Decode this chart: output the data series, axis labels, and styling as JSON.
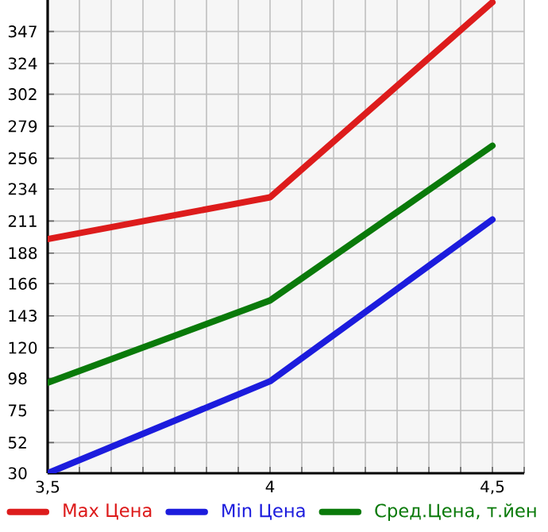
{
  "chart_data": {
    "type": "line",
    "x": [
      3.5,
      4,
      4.5
    ],
    "xlim": [
      3.5,
      4.5714
    ],
    "xticks": [
      {
        "value": 3.5,
        "label": "3,5"
      },
      {
        "value": 3.5714,
        "label": null
      },
      {
        "value": 3.6429,
        "label": null
      },
      {
        "value": 3.7143,
        "label": null
      },
      {
        "value": 3.7857,
        "label": null
      },
      {
        "value": 3.8571,
        "label": null
      },
      {
        "value": 3.9286,
        "label": null
      },
      4,
      {
        "value": 4.0714,
        "label": null
      },
      {
        "value": 4.1429,
        "label": null
      },
      {
        "value": 4.2143,
        "label": null
      },
      {
        "value": 4.2857,
        "label": null
      },
      {
        "value": 4.3571,
        "label": null
      },
      {
        "value": 4.4286,
        "label": null
      },
      {
        "value": 4.5,
        "label": "4,5"
      },
      {
        "value": 4.5714,
        "label": null
      }
    ],
    "ylim": [
      30,
      369.6
    ],
    "yticks": [
      30,
      52,
      75,
      98,
      120,
      143,
      166,
      188,
      211,
      234,
      256,
      279,
      302,
      324,
      347
    ],
    "series": [
      {
        "name": "Max Цена",
        "color": "#dd1c1c",
        "values": [
          198,
          228,
          368
        ]
      },
      {
        "name": "Min Цена",
        "color": "#1c1cdd",
        "values": [
          30,
          96,
          212
        ]
      },
      {
        "name": "Сред.Цена, т.йен",
        "color": "#0a7a0a",
        "values": [
          95,
          154,
          265
        ]
      }
    ],
    "grid": true,
    "legend": "bottom",
    "marker": "none",
    "line_style": "solid"
  }
}
